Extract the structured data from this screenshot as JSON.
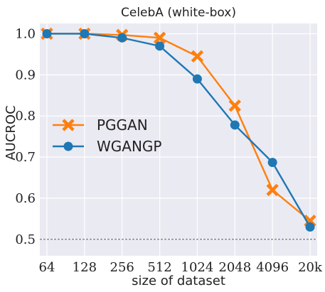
{
  "chart_data": {
    "type": "line",
    "title": "CelebA (white-box)",
    "xlabel": "size of dataset",
    "ylabel": "AUCROC",
    "categories": [
      "64",
      "128",
      "256",
      "512",
      "1024",
      "2048",
      "4096",
      "20k"
    ],
    "ylim": [
      0.46,
      1.025
    ],
    "yticks": [
      0.5,
      0.6,
      0.7,
      0.8,
      0.9,
      1.0
    ],
    "ytick_labels": [
      "0.5",
      "0.6",
      "0.7",
      "0.8",
      "0.9",
      "1.0"
    ],
    "grid": true,
    "reference_line": {
      "y": 0.5,
      "style": "dashed"
    },
    "legend_position": "center-left",
    "series": [
      {
        "name": "PGGAN",
        "color": "#ff7f0e",
        "marker": "x-mark",
        "values": [
          1.0,
          1.0,
          0.997,
          0.99,
          0.945,
          0.825,
          0.62,
          0.545
        ]
      },
      {
        "name": "WGANGP",
        "color": "#1f77b4",
        "marker": "circle",
        "values": [
          1.0,
          1.0,
          0.99,
          0.97,
          0.89,
          0.778,
          0.687,
          0.53
        ]
      }
    ]
  },
  "colors": {
    "plot_background": "#eaeaf2",
    "grid": "#ffffff",
    "reference_line": "#555555"
  }
}
